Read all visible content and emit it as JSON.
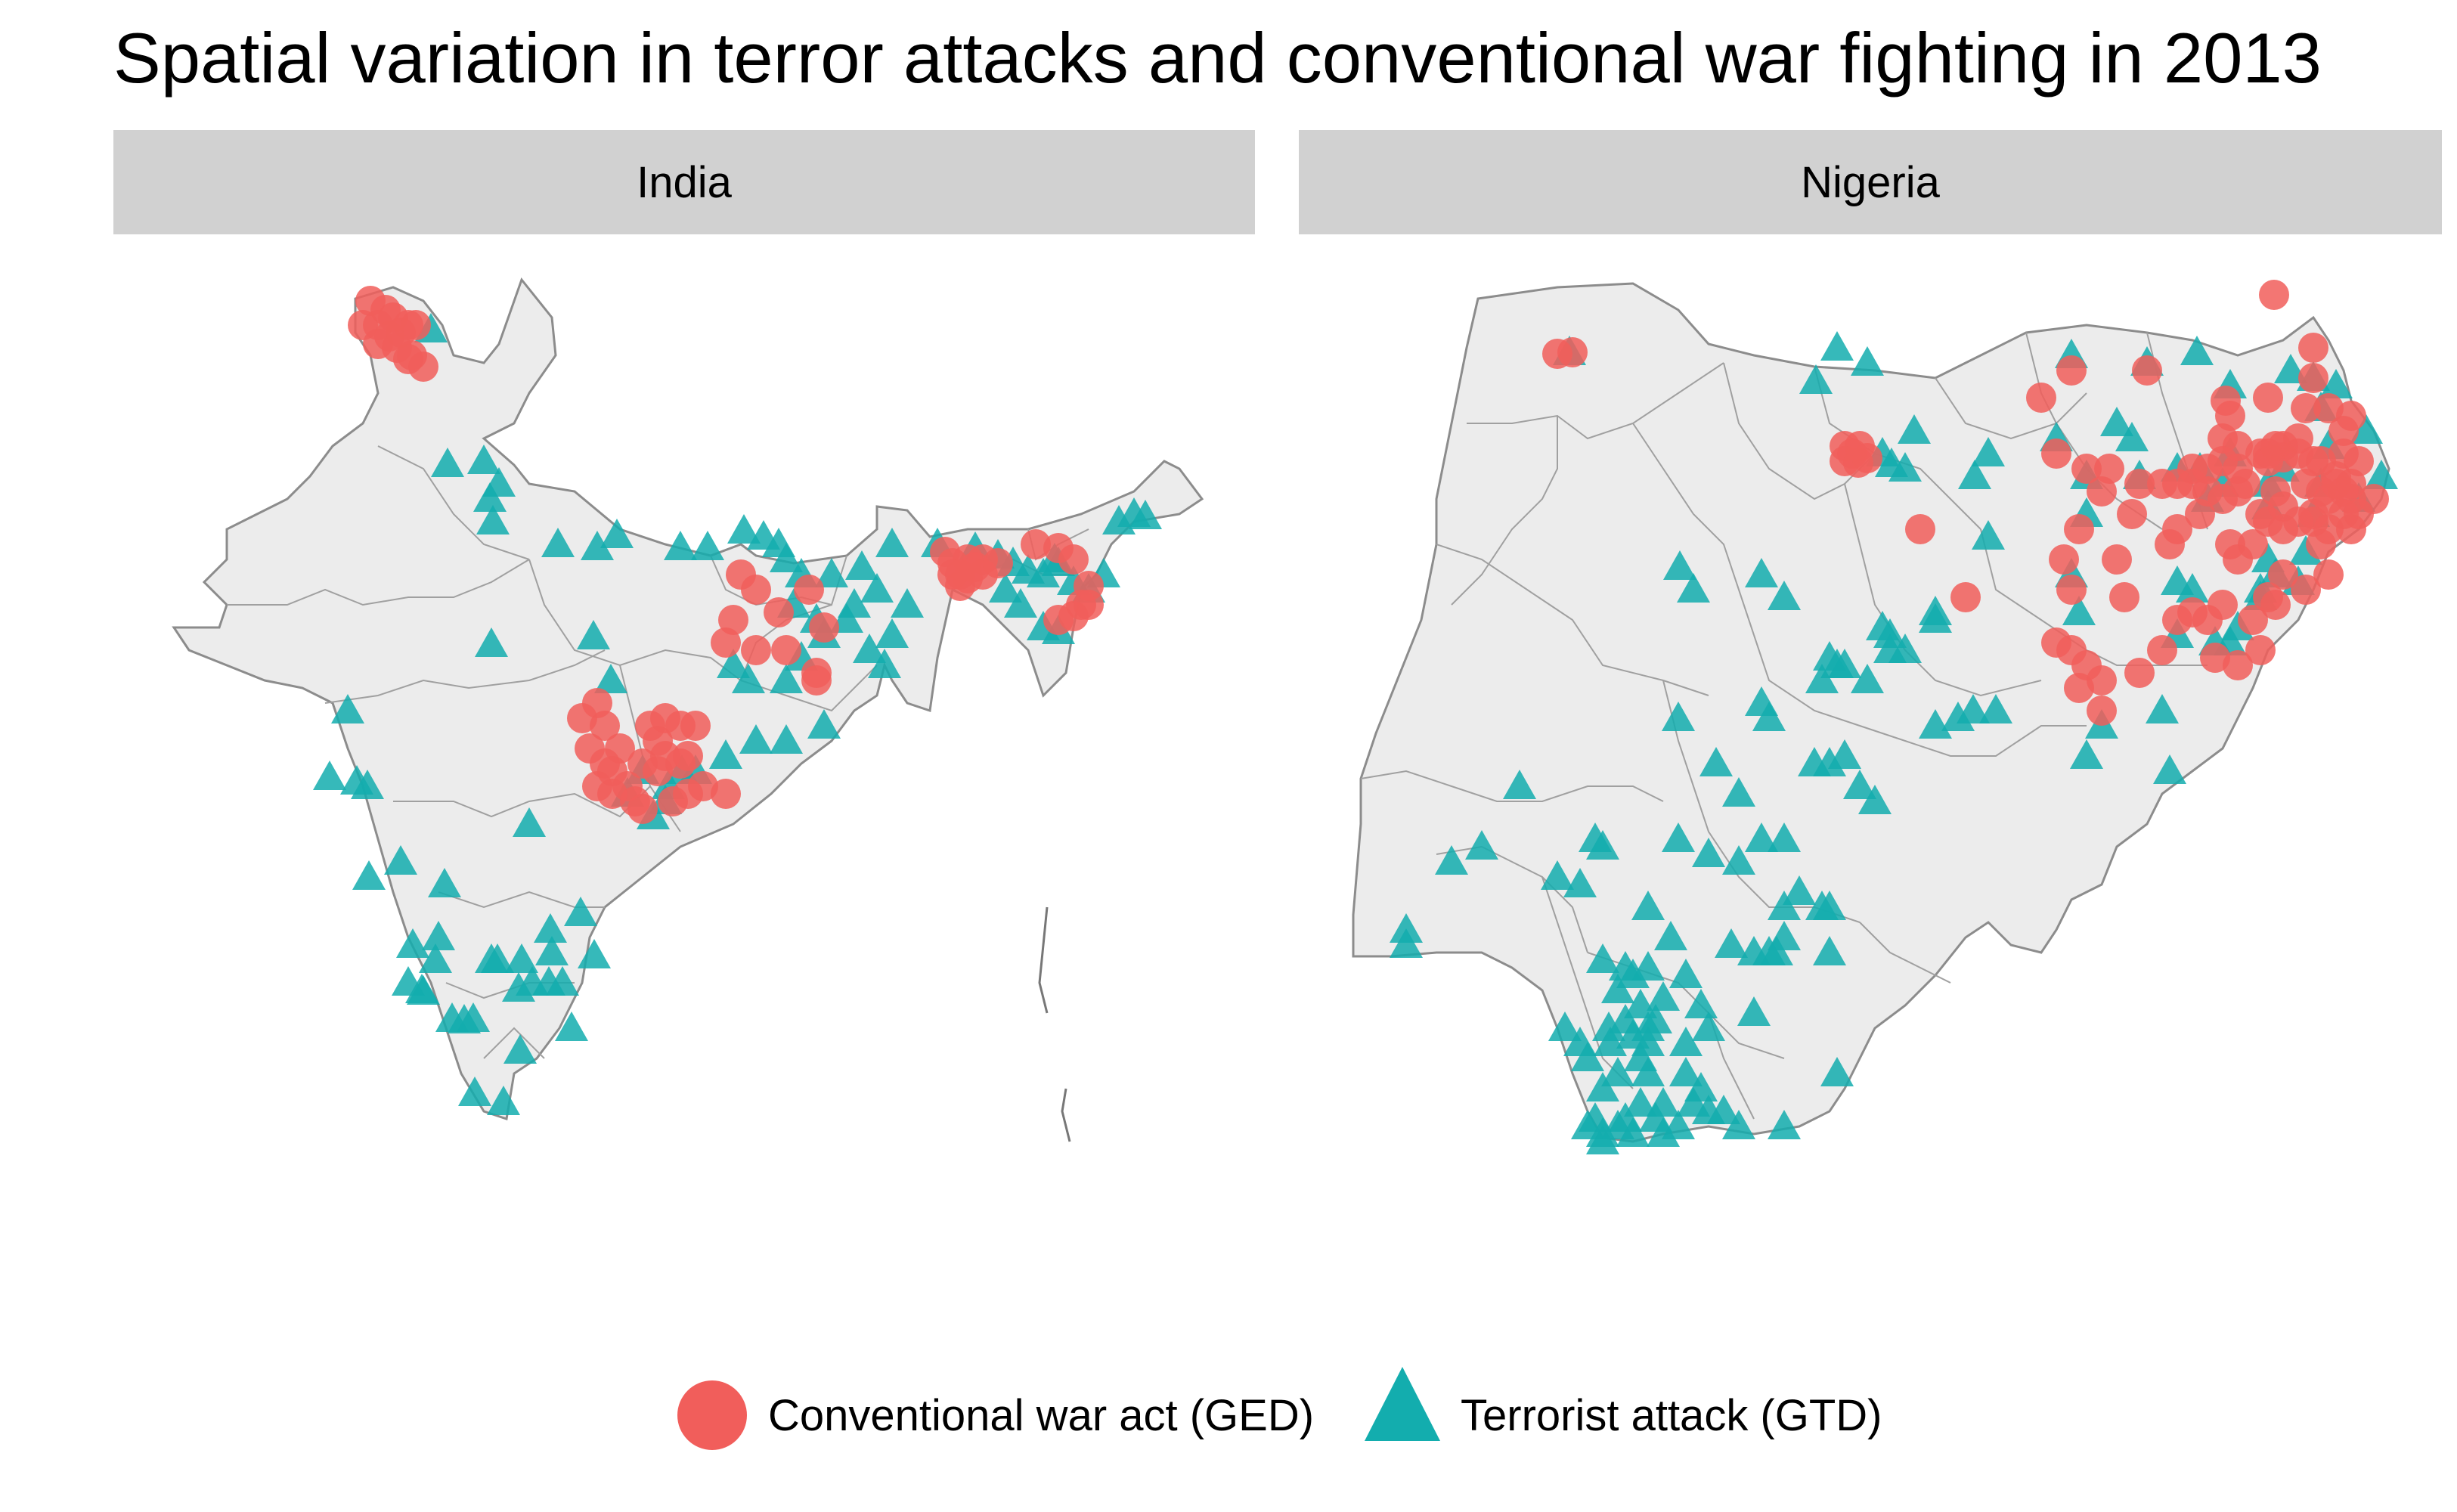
{
  "title": "Spatial variation in terror attacks and conventional war fighting in 2013",
  "colors": {
    "ged": "#f15e5b",
    "gtd": "#13adae",
    "land": "#ececec",
    "border": "#8c8c8c",
    "strip": "#d1d1d1"
  },
  "panels": [
    {
      "name": "India"
    },
    {
      "name": "Nigeria"
    }
  ],
  "legend": {
    "items": [
      {
        "label": "Conventional war act (GED)",
        "shape": "circle"
      },
      {
        "label": "Terrorist attack (GTD)",
        "shape": "triangle"
      }
    ]
  }
}
